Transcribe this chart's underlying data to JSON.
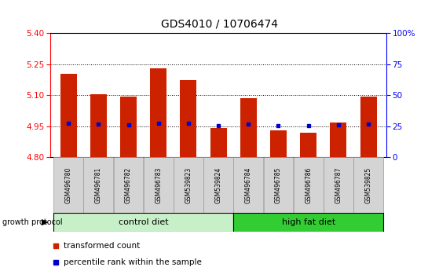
{
  "title": "GDS4010 / 10706474",
  "samples": [
    "GSM496780",
    "GSM496781",
    "GSM496782",
    "GSM496783",
    "GSM539823",
    "GSM539824",
    "GSM496784",
    "GSM496785",
    "GSM496786",
    "GSM496787",
    "GSM539825"
  ],
  "red_values": [
    5.205,
    5.105,
    5.093,
    5.232,
    5.175,
    4.942,
    5.085,
    4.928,
    4.918,
    4.968,
    5.092
  ],
  "blue_values": [
    4.963,
    4.959,
    4.958,
    4.963,
    4.963,
    4.953,
    4.96,
    4.953,
    4.953,
    4.958,
    4.96
  ],
  "ymin": 4.8,
  "ymax": 5.4,
  "y_ticks_left": [
    4.8,
    4.95,
    5.1,
    5.25,
    5.4
  ],
  "y_ticks_right_vals": [
    0,
    25,
    50,
    75,
    100
  ],
  "y_ticks_right_labels": [
    "0",
    "25",
    "50",
    "75",
    "100%"
  ],
  "grid_lines": [
    4.95,
    5.1,
    5.25
  ],
  "bar_bottom": 4.8,
  "bar_color": "#cc2200",
  "dot_color": "#0000cc",
  "control_label": "control diet",
  "high_fat_label": "high fat diet",
  "protocol_label": "growth protocol",
  "legend_red": "transformed count",
  "legend_blue": "percentile rank within the sample",
  "title_fontsize": 10,
  "tick_fontsize": 7.5,
  "sample_fontsize": 5.5,
  "diet_fontsize": 8,
  "legend_fontsize": 7.5,
  "bar_width": 0.55,
  "control_color_light": "#c8f0c8",
  "control_color_dark": "#90ee90",
  "high_fat_color": "#32cd32",
  "label_bg_color": "#d4d4d4",
  "right_axis_label_0": "0",
  "right_axis_label_100": "100%"
}
